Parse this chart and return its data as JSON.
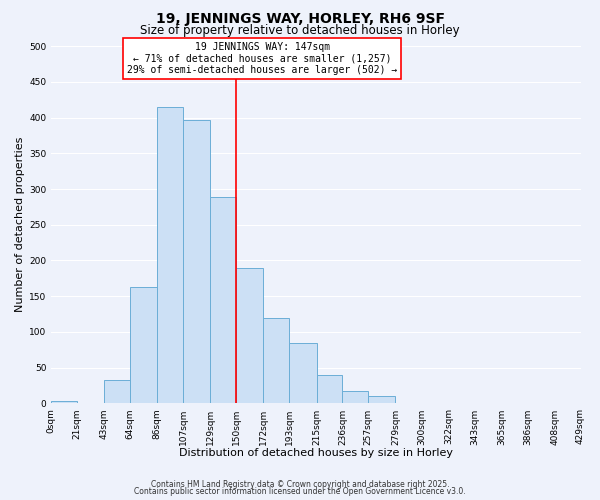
{
  "title": "19, JENNINGS WAY, HORLEY, RH6 9SF",
  "subtitle": "Size of property relative to detached houses in Horley",
  "xlabel": "Distribution of detached houses by size in Horley",
  "ylabel": "Number of detached properties",
  "bar_color": "#cce0f5",
  "bar_edge_color": "#6baed6",
  "background_color": "#eef2fb",
  "grid_color": "#ffffff",
  "bin_edges": [
    0,
    21,
    43,
    64,
    86,
    107,
    129,
    150,
    172,
    193,
    215,
    236,
    257,
    279,
    300,
    322,
    343,
    365,
    386,
    408,
    429
  ],
  "bin_labels": [
    "0sqm",
    "21sqm",
    "43sqm",
    "64sqm",
    "86sqm",
    "107sqm",
    "129sqm",
    "150sqm",
    "172sqm",
    "193sqm",
    "215sqm",
    "236sqm",
    "257sqm",
    "279sqm",
    "300sqm",
    "322sqm",
    "343sqm",
    "365sqm",
    "386sqm",
    "408sqm",
    "429sqm"
  ],
  "counts": [
    3,
    0,
    33,
    163,
    415,
    396,
    289,
    189,
    120,
    85,
    40,
    18,
    10,
    0,
    0,
    0,
    0,
    0,
    0,
    0
  ],
  "ylim": [
    0,
    500
  ],
  "yticks": [
    0,
    50,
    100,
    150,
    200,
    250,
    300,
    350,
    400,
    450,
    500
  ],
  "red_line_x": 150,
  "annotation_title": "19 JENNINGS WAY: 147sqm",
  "annotation_line1": "← 71% of detached houses are smaller (1,257)",
  "annotation_line2": "29% of semi-detached houses are larger (502) →",
  "footer_line1": "Contains HM Land Registry data © Crown copyright and database right 2025.",
  "footer_line2": "Contains public sector information licensed under the Open Government Licence v3.0.",
  "title_fontsize": 10,
  "subtitle_fontsize": 8.5,
  "tick_fontsize": 6.5,
  "label_fontsize": 8,
  "footer_fontsize": 5.5
}
